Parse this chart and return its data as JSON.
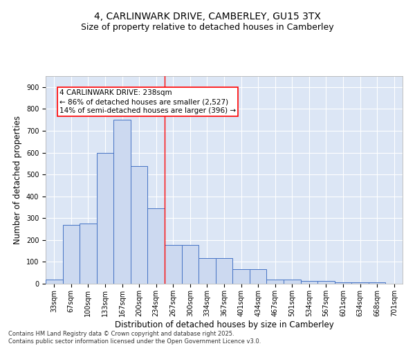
{
  "title1": "4, CARLINWARK DRIVE, CAMBERLEY, GU15 3TX",
  "title2": "Size of property relative to detached houses in Camberley",
  "xlabel": "Distribution of detached houses by size in Camberley",
  "ylabel": "Number of detached properties",
  "categories": [
    "33sqm",
    "67sqm",
    "100sqm",
    "133sqm",
    "167sqm",
    "200sqm",
    "234sqm",
    "267sqm",
    "300sqm",
    "334sqm",
    "367sqm",
    "401sqm",
    "434sqm",
    "467sqm",
    "501sqm",
    "534sqm",
    "567sqm",
    "601sqm",
    "634sqm",
    "668sqm",
    "701sqm"
  ],
  "values": [
    20,
    270,
    275,
    600,
    750,
    538,
    345,
    178,
    178,
    118,
    118,
    67,
    67,
    20,
    20,
    12,
    12,
    7,
    7,
    7,
    0
  ],
  "bar_color": "#ccd9f0",
  "bar_edge_color": "#4472c4",
  "background_color": "#dce6f5",
  "grid_color": "#ffffff",
  "ylim": [
    0,
    950
  ],
  "yticks": [
    0,
    100,
    200,
    300,
    400,
    500,
    600,
    700,
    800,
    900
  ],
  "red_line_x": 6.5,
  "annotation_text": "4 CARLINWARK DRIVE: 238sqm\n← 86% of detached houses are smaller (2,527)\n14% of semi-detached houses are larger (396) →",
  "footnote": "Contains HM Land Registry data © Crown copyright and database right 2025.\nContains public sector information licensed under the Open Government Licence v3.0.",
  "title_fontsize": 10,
  "subtitle_fontsize": 9,
  "tick_fontsize": 7,
  "label_fontsize": 8.5,
  "annot_fontsize": 7.5
}
